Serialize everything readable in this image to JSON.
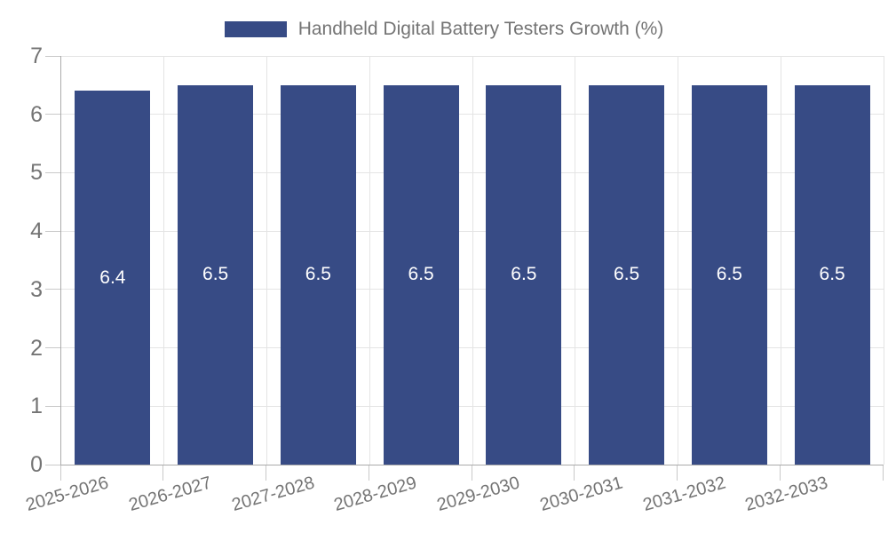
{
  "chart_data": {
    "type": "bar",
    "title": "Handheld Digital Battery Testers Growth (%)",
    "categories": [
      "2025-2026",
      "2026-2027",
      "2027-2028",
      "2028-2029",
      "2029-2030",
      "2030-2031",
      "2031-2032",
      "2032-2033"
    ],
    "values": [
      6.4,
      6.5,
      6.5,
      6.5,
      6.5,
      6.5,
      6.5,
      6.5
    ],
    "xlabel": "",
    "ylabel": "",
    "ylim": [
      0,
      7
    ],
    "yticks": [
      0,
      1,
      2,
      3,
      4,
      5,
      6,
      7
    ],
    "grid": "on",
    "legend_position": "top-center",
    "value_labels_shown": true,
    "colors": {
      "bar": "#374B85",
      "grid": "#e4e4e4",
      "axis": "#ababab",
      "tick": "#c9c9c9",
      "text": "#747474",
      "value_label": "#ffffff"
    }
  }
}
